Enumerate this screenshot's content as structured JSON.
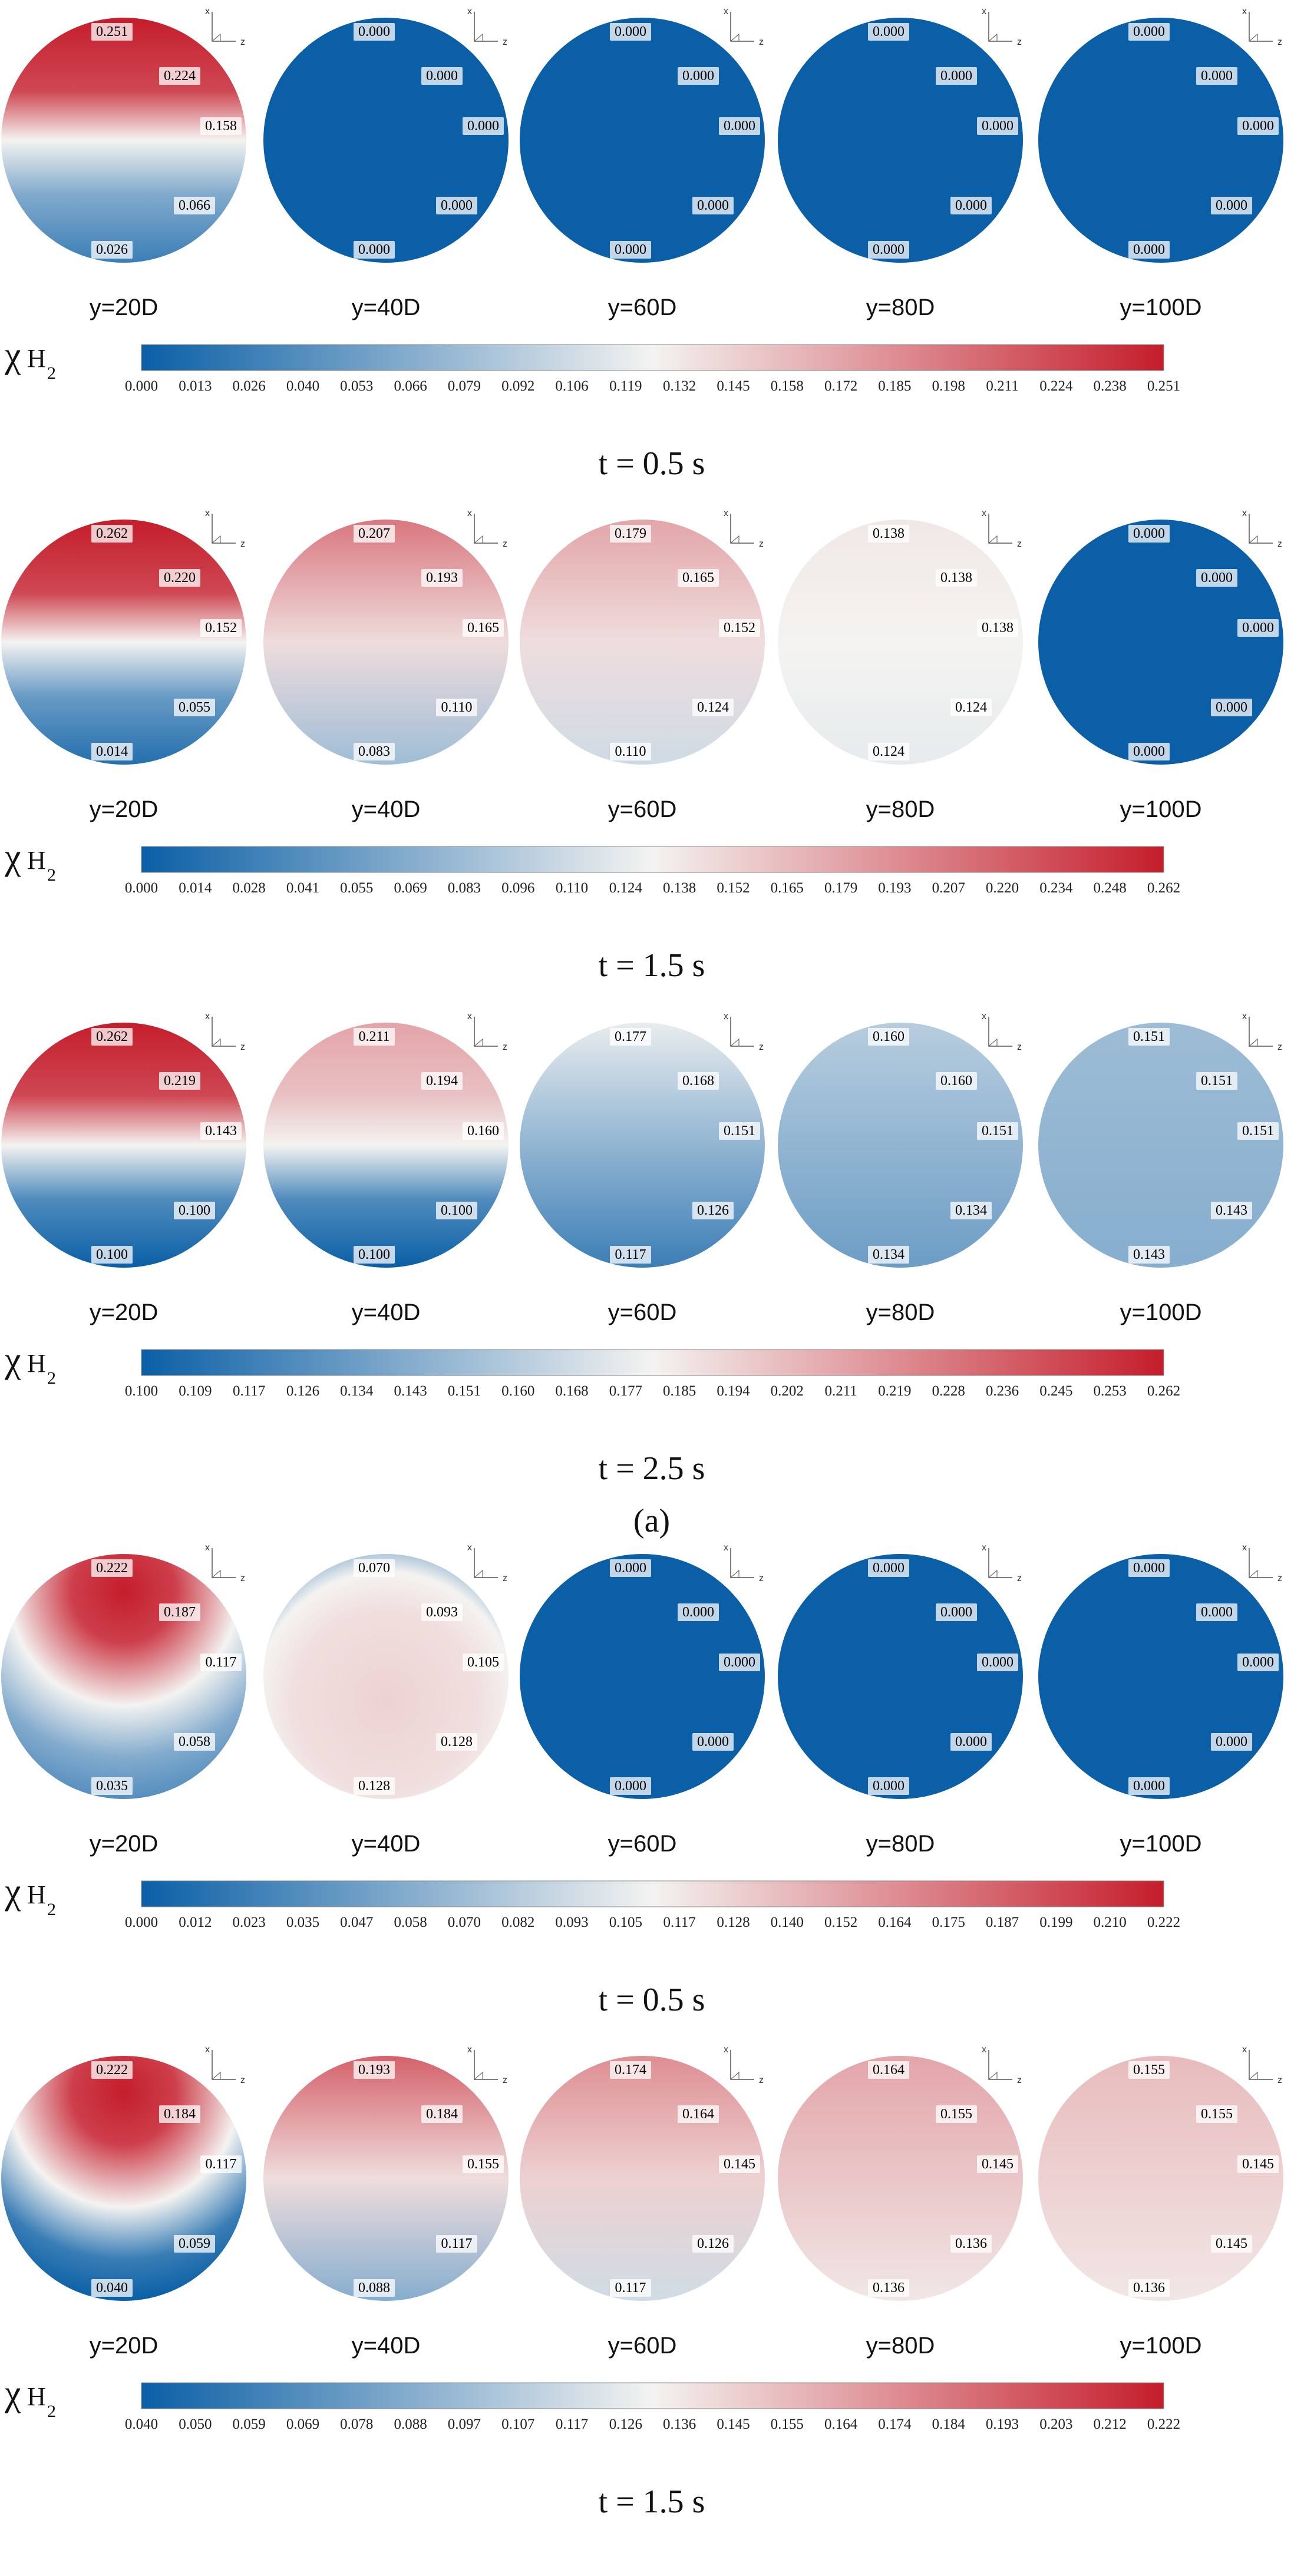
{
  "figure": {
    "colorbar_symbol": "χ",
    "colorbar_subscript": "H",
    "colorbar_subsub": "2",
    "axis_x": "x",
    "axis_z": "z",
    "colors": {
      "low": "#0a5fa6",
      "mid": "#f4f3f1",
      "high": "#c51d2b"
    },
    "subfigure_caption": "(a)",
    "panels": [
      {
        "time": "t = 0.5 s",
        "ticks": [
          "0.000",
          "0.013",
          "0.026",
          "0.040",
          "0.053",
          "0.066",
          "0.079",
          "0.092",
          "0.106",
          "0.119",
          "0.132",
          "0.145",
          "0.158",
          "0.172",
          "0.185",
          "0.198",
          "0.211",
          "0.224",
          "0.238",
          "0.251"
        ],
        "vmin": 0.0,
        "vmax": 0.251,
        "discs": [
          {
            "position": "y=20D",
            "mode": "strat",
            "top": 0.251,
            "bottom": 0.026,
            "labels": [
              "0.251",
              "0.224",
              "0.158",
              "0.066",
              "0.026"
            ]
          },
          {
            "position": "y=40D",
            "mode": "uniform",
            "top": 0.0,
            "bottom": 0.0,
            "labels": [
              "0.000",
              "0.000",
              "0.000",
              "0.000",
              "0.000"
            ]
          },
          {
            "position": "y=60D",
            "mode": "uniform",
            "top": 0.0,
            "bottom": 0.0,
            "labels": [
              "0.000",
              "0.000",
              "0.000",
              "0.000",
              "0.000"
            ]
          },
          {
            "position": "y=80D",
            "mode": "uniform",
            "top": 0.0,
            "bottom": 0.0,
            "labels": [
              "0.000",
              "0.000",
              "0.000",
              "0.000",
              "0.000"
            ]
          },
          {
            "position": "y=100D",
            "mode": "uniform",
            "top": 0.0,
            "bottom": 0.0,
            "labels": [
              "0.000",
              "0.000",
              "0.000",
              "0.000",
              "0.000"
            ]
          }
        ]
      },
      {
        "time": "t = 1.5 s",
        "ticks": [
          "0.000",
          "0.014",
          "0.028",
          "0.041",
          "0.055",
          "0.069",
          "0.083",
          "0.096",
          "0.110",
          "0.124",
          "0.138",
          "0.152",
          "0.165",
          "0.179",
          "0.193",
          "0.207",
          "0.220",
          "0.234",
          "0.248",
          "0.262"
        ],
        "vmin": 0.0,
        "vmax": 0.262,
        "discs": [
          {
            "position": "y=20D",
            "mode": "strat",
            "top": 0.262,
            "bottom": 0.014,
            "labels": [
              "0.262",
              "0.220",
              "0.152",
              "0.055",
              "0.014"
            ]
          },
          {
            "position": "y=40D",
            "mode": "grad",
            "top": 0.207,
            "bottom": 0.083,
            "labels": [
              "0.207",
              "0.193",
              "0.165",
              "0.110",
              "0.083"
            ]
          },
          {
            "position": "y=60D",
            "mode": "grad",
            "top": 0.179,
            "bottom": 0.11,
            "labels": [
              "0.179",
              "0.165",
              "0.152",
              "0.124",
              "0.110"
            ]
          },
          {
            "position": "y=80D",
            "mode": "grad",
            "top": 0.138,
            "bottom": 0.124,
            "labels": [
              "0.138",
              "0.138",
              "0.138",
              "0.124",
              "0.124"
            ]
          },
          {
            "position": "y=100D",
            "mode": "uniform",
            "top": 0.0,
            "bottom": 0.0,
            "labels": [
              "0.000",
              "0.000",
              "0.000",
              "0.000",
              "0.000"
            ]
          }
        ]
      },
      {
        "time": "t = 2.5 s",
        "ticks": [
          "0.100",
          "0.109",
          "0.117",
          "0.126",
          "0.134",
          "0.143",
          "0.151",
          "0.160",
          "0.168",
          "0.177",
          "0.185",
          "0.194",
          "0.202",
          "0.211",
          "0.219",
          "0.228",
          "0.236",
          "0.245",
          "0.253",
          "0.262"
        ],
        "vmin": 0.1,
        "vmax": 0.262,
        "discs": [
          {
            "position": "y=20D",
            "mode": "strat",
            "top": 0.262,
            "bottom": 0.1,
            "labels": [
              "0.262",
              "0.219",
              "0.143",
              "0.100",
              "0.100"
            ]
          },
          {
            "position": "y=40D",
            "mode": "strat",
            "top": 0.211,
            "bottom": 0.1,
            "labels": [
              "0.211",
              "0.194",
              "0.160",
              "0.100",
              "0.100"
            ]
          },
          {
            "position": "y=60D",
            "mode": "grad",
            "top": 0.177,
            "bottom": 0.117,
            "labels": [
              "0.177",
              "0.168",
              "0.151",
              "0.126",
              "0.117"
            ]
          },
          {
            "position": "y=80D",
            "mode": "grad",
            "top": 0.16,
            "bottom": 0.134,
            "labels": [
              "0.160",
              "0.160",
              "0.151",
              "0.134",
              "0.134"
            ]
          },
          {
            "position": "y=100D",
            "mode": "grad",
            "top": 0.151,
            "bottom": 0.143,
            "labels": [
              "0.151",
              "0.151",
              "0.151",
              "0.143",
              "0.143"
            ]
          }
        ]
      },
      {
        "time": "t = 0.5 s",
        "ticks": [
          "0.000",
          "0.012",
          "0.023",
          "0.035",
          "0.047",
          "0.058",
          "0.070",
          "0.082",
          "0.093",
          "0.105",
          "0.117",
          "0.128",
          "0.140",
          "0.152",
          "0.164",
          "0.175",
          "0.187",
          "0.199",
          "0.210",
          "0.222"
        ],
        "vmin": 0.0,
        "vmax": 0.222,
        "discs": [
          {
            "position": "y=20D",
            "mode": "plume",
            "top": 0.222,
            "bottom": 0.035,
            "labels": [
              "0.222",
              "0.187",
              "0.117",
              "0.058",
              "0.035"
            ]
          },
          {
            "position": "y=40D",
            "mode": "ring",
            "top": 0.07,
            "bottom": 0.128,
            "labels": [
              "0.070",
              "0.093",
              "0.105",
              "0.128",
              "0.128"
            ]
          },
          {
            "position": "y=60D",
            "mode": "uniform",
            "top": 0.0,
            "bottom": 0.0,
            "labels": [
              "0.000",
              "0.000",
              "0.000",
              "0.000",
              "0.000"
            ]
          },
          {
            "position": "y=80D",
            "mode": "uniform",
            "top": 0.0,
            "bottom": 0.0,
            "labels": [
              "0.000",
              "0.000",
              "0.000",
              "0.000",
              "0.000"
            ]
          },
          {
            "position": "y=100D",
            "mode": "uniform",
            "top": 0.0,
            "bottom": 0.0,
            "labels": [
              "0.000",
              "0.000",
              "0.000",
              "0.000",
              "0.000"
            ]
          }
        ]
      },
      {
        "time": "t = 1.5 s",
        "ticks": [
          "0.040",
          "0.050",
          "0.059",
          "0.069",
          "0.078",
          "0.088",
          "0.097",
          "0.107",
          "0.117",
          "0.126",
          "0.136",
          "0.145",
          "0.155",
          "0.164",
          "0.174",
          "0.184",
          "0.193",
          "0.203",
          "0.212",
          "0.222"
        ],
        "vmin": 0.04,
        "vmax": 0.222,
        "discs": [
          {
            "position": "y=20D",
            "mode": "plume",
            "top": 0.222,
            "bottom": 0.04,
            "labels": [
              "0.222",
              "0.184",
              "0.117",
              "0.059",
              "0.040"
            ]
          },
          {
            "position": "y=40D",
            "mode": "grad",
            "top": 0.193,
            "bottom": 0.088,
            "labels": [
              "0.193",
              "0.184",
              "0.155",
              "0.117",
              "0.088"
            ]
          },
          {
            "position": "y=60D",
            "mode": "grad",
            "top": 0.174,
            "bottom": 0.117,
            "labels": [
              "0.174",
              "0.164",
              "0.145",
              "0.126",
              "0.117"
            ]
          },
          {
            "position": "y=80D",
            "mode": "grad",
            "top": 0.164,
            "bottom": 0.136,
            "labels": [
              "0.164",
              "0.155",
              "0.145",
              "0.136",
              "0.136"
            ]
          },
          {
            "position": "y=100D",
            "mode": "grad",
            "top": 0.155,
            "bottom": 0.136,
            "labels": [
              "0.155",
              "0.155",
              "0.145",
              "0.145",
              "0.136"
            ]
          }
        ]
      }
    ]
  }
}
